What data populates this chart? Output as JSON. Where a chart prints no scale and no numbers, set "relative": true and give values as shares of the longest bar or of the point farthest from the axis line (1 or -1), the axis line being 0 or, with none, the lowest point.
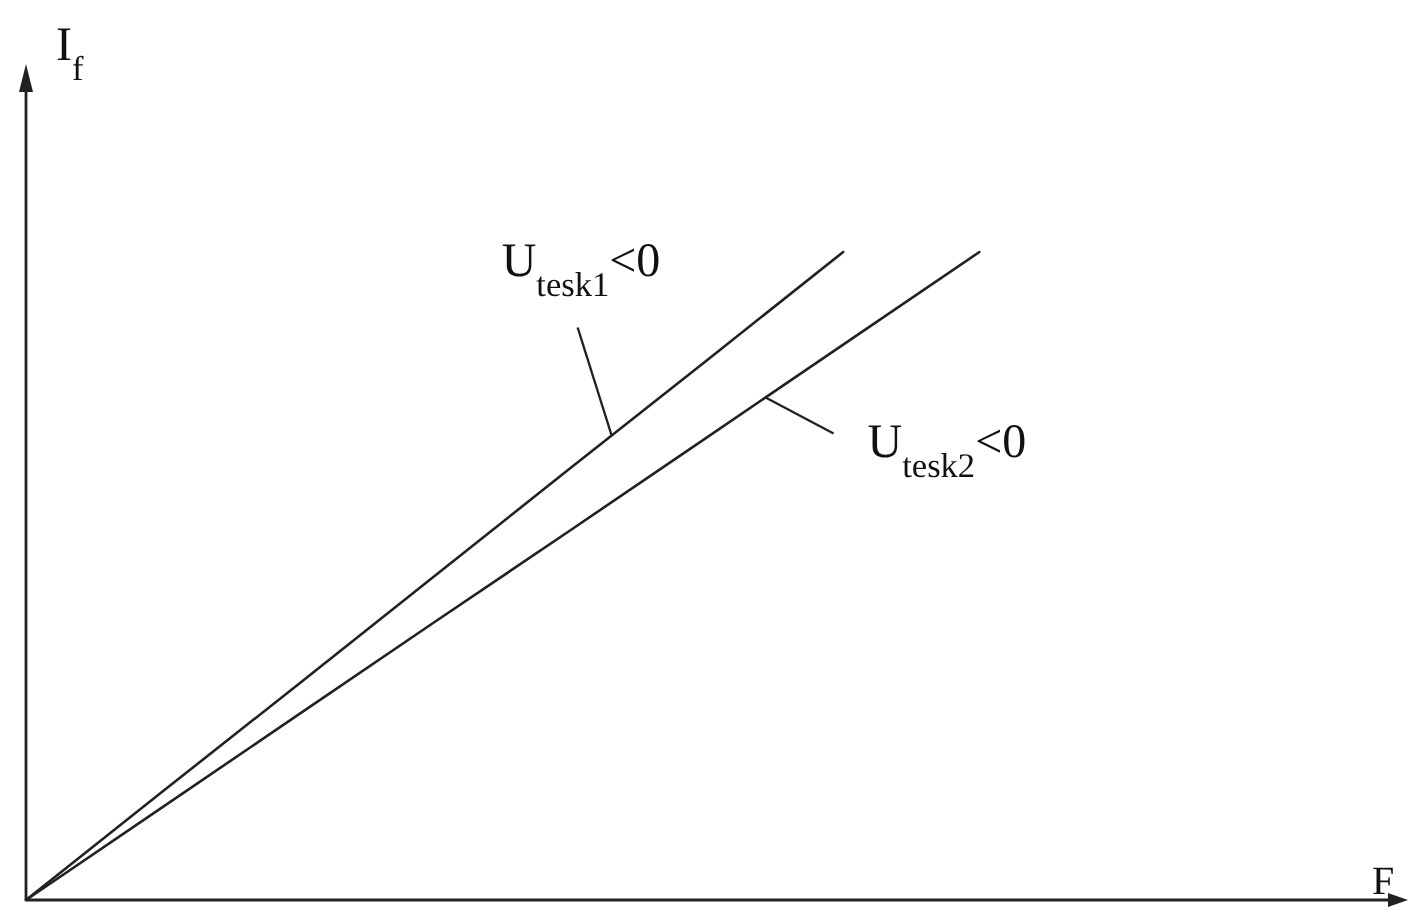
{
  "chart_data": {
    "type": "line",
    "relative": true,
    "xlabel": "F",
    "ylabel": "I$_{f}$",
    "categories": [
      null,
      null,
      null,
      null,
      null,
      null,
      null,
      null,
      null,
      null,
      null
    ],
    "series": [
      {
        "name": "U$_{tesk1}$<0",
        "color": "#222222",
        "values": [
          0,
          0.167,
          0.333,
          0.5,
          0.667,
          0.833,
          1,
          null,
          null,
          null,
          null
        ]
      },
      {
        "name": "U$_{tesk2}$<0",
        "color": "#222222",
        "values": [
          0,
          0.143,
          0.286,
          0.429,
          0.571,
          0.714,
          0.857,
          1,
          null,
          null,
          null
        ]
      }
    ]
  }
}
